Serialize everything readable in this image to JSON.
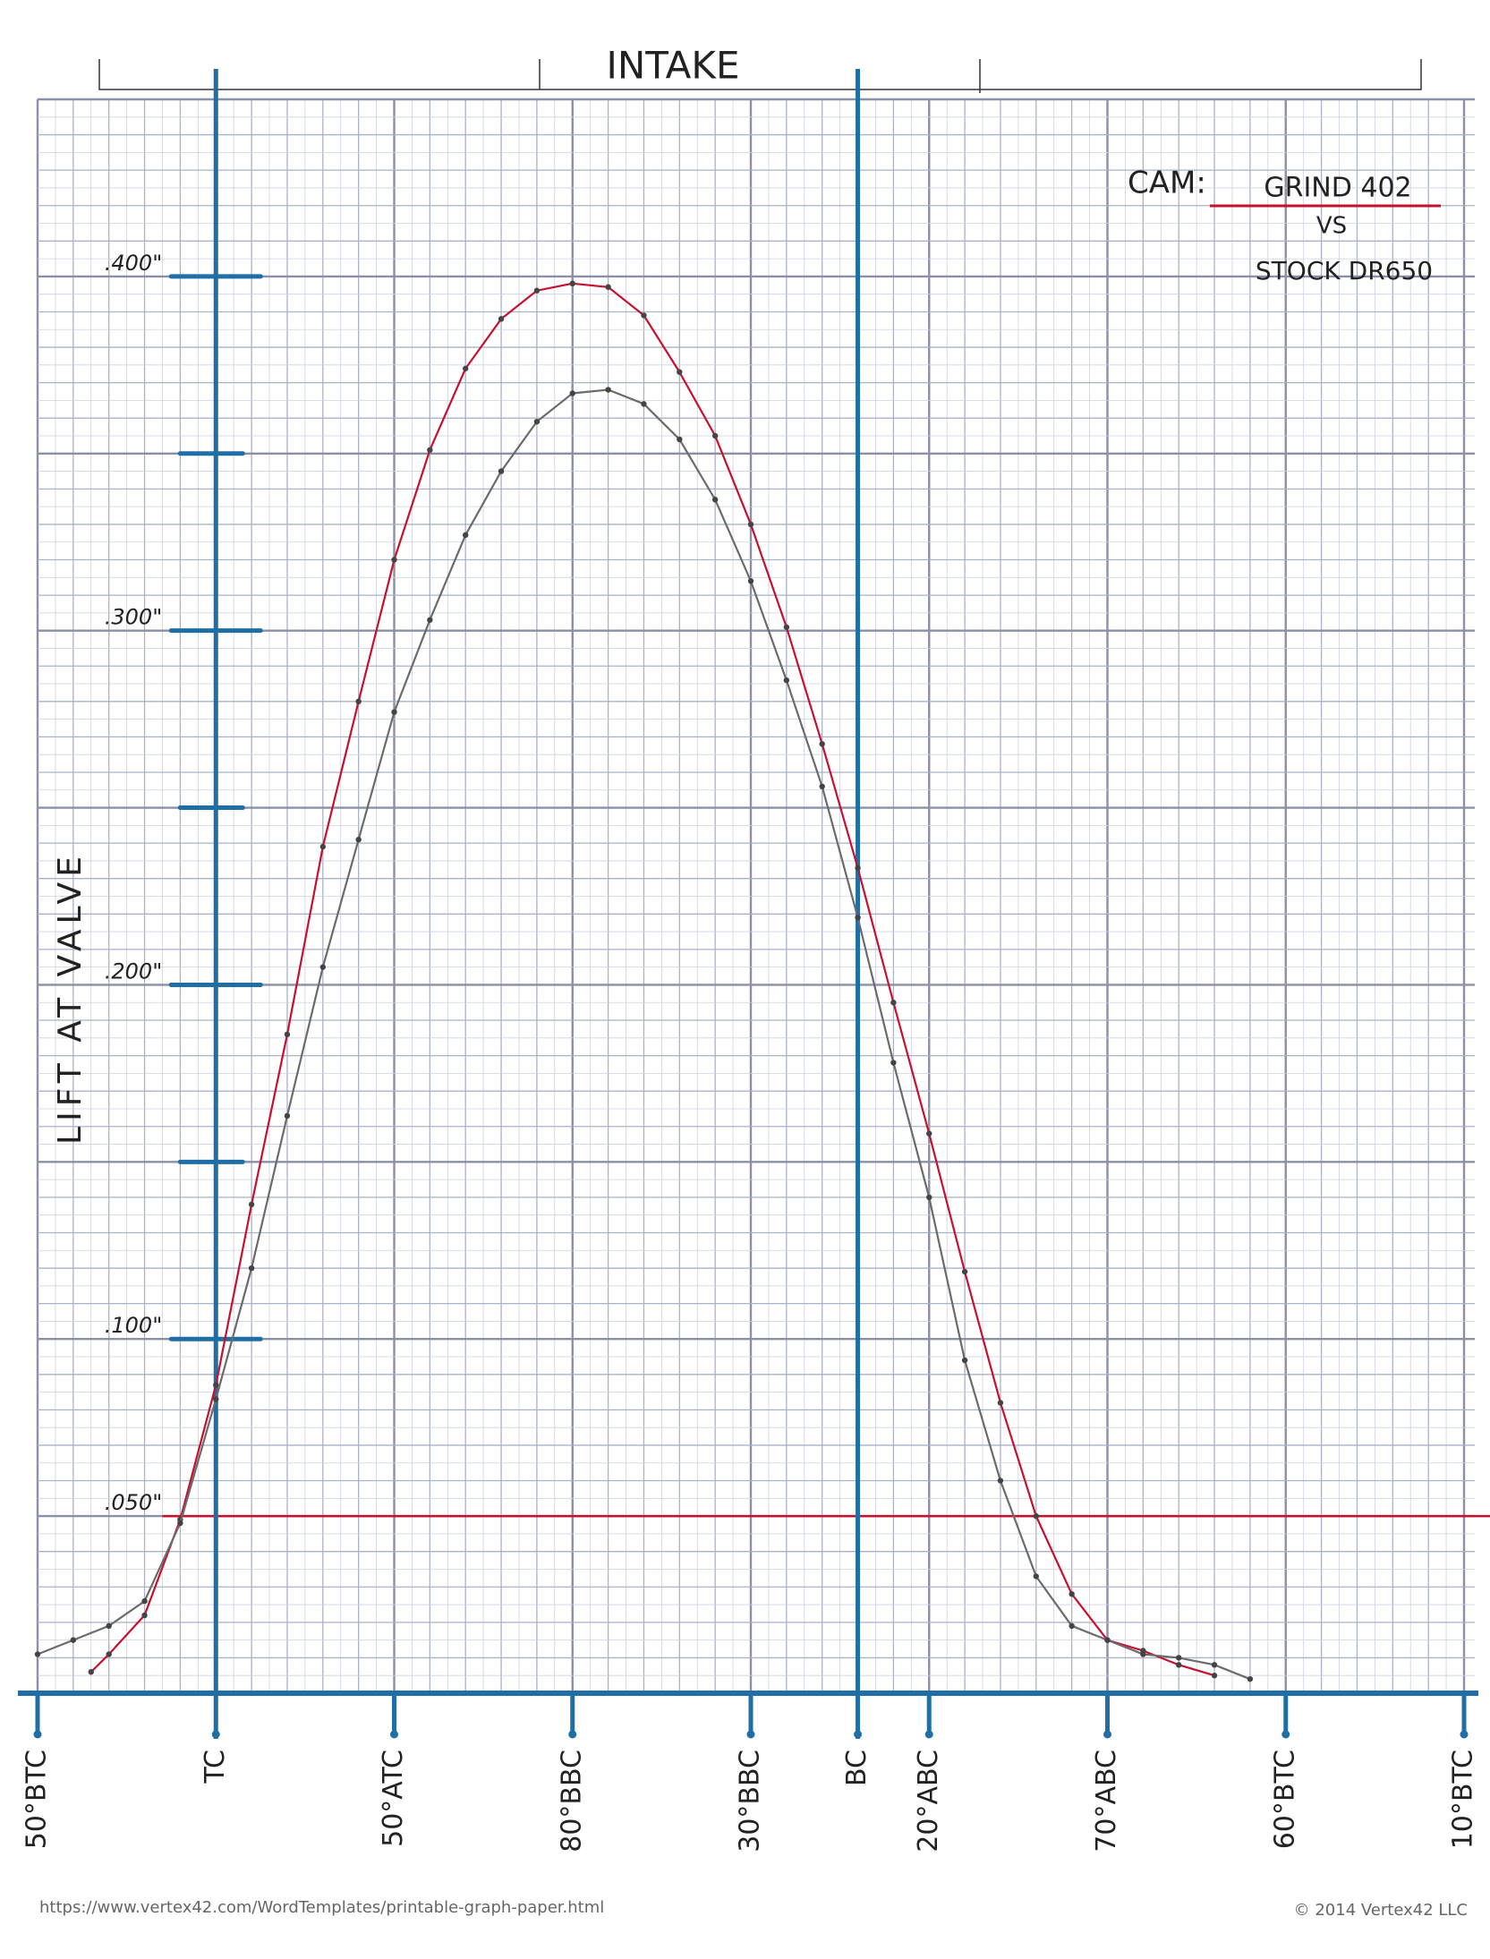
{
  "chart_data": {
    "type": "line",
    "title": "INTAKE",
    "y_label": "LIFT AT VALVE",
    "legend_title": "CAM:",
    "legend_joiner": "VS",
    "xlim": [
      -50,
      350
    ],
    "xticks": [
      {
        "value": -50,
        "label": "50°BTC"
      },
      {
        "value": 0,
        "label": "TC"
      },
      {
        "value": 50,
        "label": "50°ATC"
      },
      {
        "value": 100,
        "label": "80°BBC"
      },
      {
        "value": 150,
        "label": "30°BBC"
      },
      {
        "value": 180,
        "label": "BC"
      },
      {
        "value": 200,
        "label": "20°ABC"
      },
      {
        "value": 250,
        "label": "70°ABC"
      },
      {
        "value": 300,
        "label": "60°BTC"
      },
      {
        "value": 350,
        "label": "10°BTC"
      }
    ],
    "ylim": [
      0,
      0.45
    ],
    "yticks": [
      {
        "value": 0.05,
        "label": ".050\""
      },
      {
        "value": 0.1,
        "label": ".100\""
      },
      {
        "value": 0.2,
        "label": ".200\""
      },
      {
        "value": 0.3,
        "label": ".300\""
      },
      {
        "value": 0.4,
        "label": ".400\""
      }
    ],
    "yminor_ticks": [
      0.15,
      0.25,
      0.35
    ],
    "reference_line": {
      "value": 0.05,
      "color": "#c8102e"
    },
    "series": [
      {
        "name": "GRIND 402",
        "color": "#c8102e",
        "x": [
          -35,
          -30,
          -20,
          -10,
          0,
          10,
          20,
          30,
          40,
          50,
          60,
          70,
          80,
          90,
          100,
          110,
          120,
          130,
          140,
          150,
          160,
          170,
          180,
          190,
          200,
          210,
          220,
          230,
          240,
          250,
          260,
          270,
          280
        ],
        "values": [
          0.006,
          0.011,
          0.022,
          0.049,
          0.087,
          0.138,
          0.186,
          0.239,
          0.28,
          0.32,
          0.351,
          0.374,
          0.388,
          0.396,
          0.398,
          0.397,
          0.389,
          0.373,
          0.355,
          0.33,
          0.301,
          0.268,
          0.233,
          0.195,
          0.158,
          0.119,
          0.082,
          0.05,
          0.028,
          0.015,
          0.012,
          0.008,
          0.005
        ]
      },
      {
        "name": "STOCK DR650",
        "color": "#6b6b6b",
        "x": [
          -50,
          -40,
          -30,
          -20,
          -10,
          0,
          10,
          20,
          30,
          40,
          50,
          60,
          70,
          80,
          90,
          100,
          110,
          120,
          130,
          140,
          150,
          160,
          170,
          180,
          190,
          200,
          210,
          220,
          230,
          240,
          250,
          260,
          270,
          280,
          290
        ],
        "values": [
          0.011,
          0.015,
          0.019,
          0.026,
          0.048,
          0.083,
          0.12,
          0.163,
          0.205,
          0.241,
          0.277,
          0.303,
          0.327,
          0.345,
          0.359,
          0.367,
          0.368,
          0.364,
          0.354,
          0.337,
          0.314,
          0.286,
          0.256,
          0.219,
          0.178,
          0.14,
          0.094,
          0.06,
          0.033,
          0.019,
          0.015,
          0.011,
          0.01,
          0.008,
          0.004
        ]
      }
    ]
  },
  "footer": {
    "left": "https://www.vertex42.com/WordTemplates/printable-graph-paper.html",
    "right": "© 2014 Vertex42 LLC"
  }
}
